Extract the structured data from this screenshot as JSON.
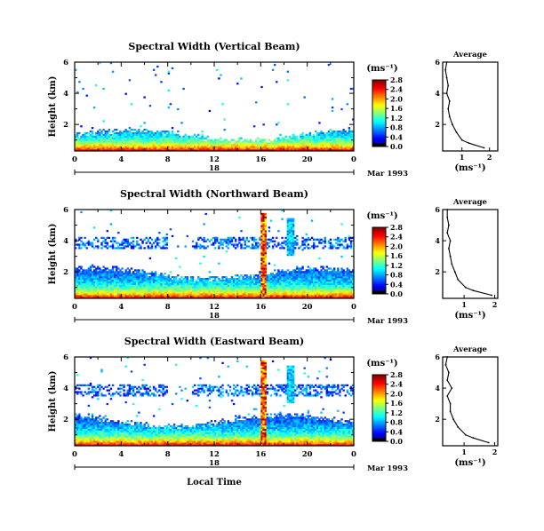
{
  "chart_data": [
    {
      "type": "heatmap",
      "title": "Spectral Width (Vertical Beam)",
      "ylabel": "Height (km)",
      "x_ticks": [
        "0",
        "4",
        "8",
        "12",
        "16",
        "20",
        "0"
      ],
      "y_ticks": [
        "2",
        "4",
        "6"
      ],
      "date_marker": "18",
      "date_label": "Mar 1993",
      "xlim": [
        0,
        24
      ],
      "ylim": [
        0.3,
        6
      ],
      "colorbar": {
        "unit": "(ms⁻¹)",
        "ticks": [
          "0.0",
          "0.4",
          "0.8",
          "1.2",
          "1.6",
          "2.0",
          "2.4",
          "2.8"
        ],
        "range": [
          0,
          2.8
        ]
      },
      "profile": {
        "title": "Average",
        "xlabel": "(ms⁻¹)",
        "x_ticks": [
          "1",
          "2"
        ],
        "y_ticks": [
          "2",
          "4",
          "6"
        ],
        "xlim": [
          0.3,
          2.3
        ],
        "ylim": [
          0.3,
          6
        ],
        "heights": [
          0.5,
          0.8,
          1.0,
          1.5,
          2.0,
          2.5,
          3.0,
          3.5,
          4.0,
          4.5,
          5.0,
          5.5,
          6.0
        ],
        "values": [
          1.8,
          1.25,
          1.0,
          0.8,
          0.65,
          0.55,
          0.5,
          0.55,
          0.45,
          0.5,
          0.45,
          0.4,
          0.45
        ]
      }
    },
    {
      "type": "heatmap",
      "title": "Spectral Width (Northward Beam)",
      "ylabel": "Height (km)",
      "x_ticks": [
        "0",
        "4",
        "8",
        "12",
        "16",
        "20",
        "0"
      ],
      "y_ticks": [
        "2",
        "4",
        "6"
      ],
      "date_marker": "18",
      "date_label": "Mar 1993",
      "xlim": [
        0,
        24
      ],
      "ylim": [
        0.3,
        6
      ],
      "colorbar": {
        "unit": "(ms⁻¹)",
        "ticks": [
          "0.0",
          "0.4",
          "0.8",
          "1.2",
          "1.6",
          "2.0",
          "2.4",
          "2.8"
        ],
        "range": [
          0,
          2.8
        ]
      },
      "profile": {
        "title": "Average",
        "xlabel": "(ms⁻¹)",
        "x_ticks": [
          "1",
          "2"
        ],
        "y_ticks": [
          "2",
          "4",
          "6"
        ],
        "xlim": [
          0.3,
          2.1
        ],
        "ylim": [
          0.3,
          6
        ],
        "heights": [
          0.5,
          0.8,
          1.0,
          1.5,
          2.0,
          2.5,
          3.0,
          3.5,
          4.0,
          4.5,
          5.0,
          5.5,
          6.0
        ],
        "values": [
          1.9,
          1.3,
          1.05,
          0.8,
          0.7,
          0.6,
          0.55,
          0.5,
          0.55,
          0.45,
          0.5,
          0.45,
          0.45
        ]
      }
    },
    {
      "type": "heatmap",
      "title": "Spectral Width (Eastward Beam)",
      "ylabel": "Height (km)",
      "xlabel": "Local Time",
      "x_ticks": [
        "0",
        "4",
        "8",
        "12",
        "16",
        "20",
        "0"
      ],
      "y_ticks": [
        "2",
        "4",
        "6"
      ],
      "date_marker": "18",
      "date_label": "Mar 1993",
      "xlim": [
        0,
        24
      ],
      "ylim": [
        0.3,
        6
      ],
      "colorbar": {
        "unit": "(ms⁻¹)",
        "ticks": [
          "0.0",
          "0.4",
          "0.8",
          "1.2",
          "1.6",
          "2.0",
          "2.4",
          "2.8"
        ],
        "range": [
          0,
          2.8
        ]
      },
      "profile": {
        "title": "Average",
        "xlabel": "(ms⁻¹)",
        "x_ticks": [
          "1",
          "2"
        ],
        "y_ticks": [
          "2",
          "4",
          "6"
        ],
        "xlim": [
          0.3,
          2.1
        ],
        "ylim": [
          0.3,
          6
        ],
        "heights": [
          0.5,
          0.8,
          1.0,
          1.5,
          2.0,
          2.5,
          3.0,
          3.5,
          4.0,
          4.5,
          5.0,
          5.5,
          6.0
        ],
        "values": [
          1.8,
          1.3,
          1.05,
          0.8,
          0.65,
          0.55,
          0.55,
          0.45,
          0.6,
          0.45,
          0.5,
          0.4,
          0.45
        ]
      }
    }
  ]
}
